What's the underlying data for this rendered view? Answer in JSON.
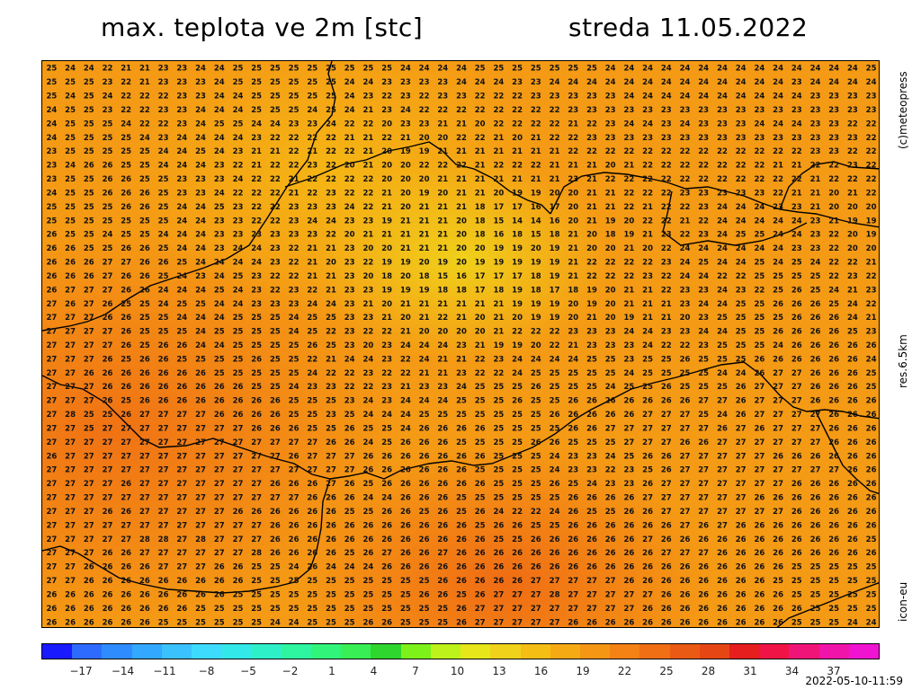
{
  "title": "max. teplota ve 2m [stc]",
  "date": "streda 11.05.2022",
  "credit": "(c)meteopress",
  "resolution": "res.6.5km",
  "model": "icon-eu",
  "timestamp": "2022-05-10-11:59",
  "colorbar": {
    "ticks": [
      "-17",
      "-14",
      "-11",
      "-8",
      "-5",
      "-2",
      "1",
      "4",
      "7",
      "10",
      "13",
      "16",
      "19",
      "22",
      "25",
      "28",
      "31",
      "34",
      "37"
    ],
    "colors": [
      "#1a1aff",
      "#2d6bff",
      "#2f8cff",
      "#33a8ff",
      "#3ac2ff",
      "#3ddcff",
      "#33e8e8",
      "#2ef0c8",
      "#2ef5a0",
      "#30f57a",
      "#38f055",
      "#2ed62e",
      "#7df21a",
      "#bdf21a",
      "#e6e61a",
      "#f0d21a",
      "#f5be14",
      "#f5aa14",
      "#f59614",
      "#f58214",
      "#f06e14",
      "#eb5a14",
      "#e64614",
      "#e61e1e",
      "#f01446",
      "#f01478",
      "#f014aa",
      "#f014d2"
    ]
  },
  "grid_rows": [
    "25 24 24 22 21 21 23 23 24 24 25 25 25 25 25 25 25 25 25 24 24 24 24 25 25 25 25 25 25 25 24 24 24 24 24 24 24 24 24 24 24 24 24 24 25",
    "25 25 25 23 22 21 23 23 23 24 25 25 25 25 25 25 24 24 23 23 23 23 24 24 24 23 23 24 24 24 24 24 24 24 24 24 24 24 24 24 23 24 24 24 24",
    "25 24 25 24 22 22 22 23 23 24 24 25 25 25 25 25 24 23 22 23 22 23 23 22 22 22 23 23 23 23 23 24 24 24 24 24 24 24 24 24 24 23 23 23 23",
    "24 25 25 23 22 22 23 23 24 24 24 25 25 25 24 25 24 21 23 24 22 22 22 22 22 22 22 22 23 23 23 23 23 23 23 23 23 23 23 23 23 23 23 23 23",
    "24 25 25 25 24 22 22 23 24 25 25 24 24 23 23 24 22 22 20 23 23 21 21 20 22 22 22 22 21 22 23 24 24 23 24 23 23 23 24 24 24 23 23 22 22",
    "24 25 25 25 25 24 23 24 24 24 24 23 22 22 22 22 21 21 22 21 20 20 22 22 21 20 21 22 22 23 23 23 23 23 23 23 23 23 23 23 23 23 23 23 22",
    "23 25 25 25 25 25 24 24 25 24 23 21 21 22 21 22 22 21 20 19 19 21 21 21 21 21 21 21 22 22 22 22 22 22 22 22 22 22 22 22 22 23 23 22 22",
    "23 24 26 26 25 25 24 24 24 23 22 21 22 22 23 22 20 21 20 20 22 22 22 21 22 22 22 21 21 21 20 21 22 22 22 22 22 22 22 21 21 22 22 23 22",
    "23 25 25 26 26 25 25 23 23 23 24 22 22 21 22 22 22 22 20 20 20 21 21 21 21 21 21 21 23 21 22 22 22 22 22 22 22 22 22 22 22 21 22 22 22",
    "24 25 25 26 26 26 25 23 23 24 22 22 22 21 22 23 22 22 21 20 19 20 21 21 20 19 19 20 20 21 21 22 22 22 23 23 23 23 23 22 21 21 20 21 22",
    "25 25 25 25 26 26 25 24 24 25 23 22 22 23 23 23 24 22 21 20 21 21 21 18 17 17 16 17 20 21 21 22 21 22 22 23 24 24 24 23 23 21 20 20 20",
    "25 25 25 25 25 25 25 24 24 23 23 22 22 23 24 24 23 23 19 21 21 21 20 18 15 14 14 16 20 21 19 20 22 22 21 22 24 24 24 24 24 23 21 19 19",
    "26 25 25 24 25 25 24 24 24 23 23 23 23 23 23 22 20 21 21 21 21 21 20 18 16 18 15 18 21 20 18 19 21 23 22 23 24 25 25 24 24 23 22 20 19",
    "26 26 25 25 26 26 25 24 24 23 24 24 23 22 21 21 23 20 20 21 21 21 20 20 19 19 20 19 21 20 20 21 20 22 24 24 24 24 24 24 23 23 22 20 20",
    "26 26 26 27 27 26 26 25 24 24 24 24 23 22 21 20 23 22 19 19 20 19 20 19 19 19 19 19 21 22 22 22 22 23 24 25 24 24 25 24 25 24 22 22 21",
    "26 26 26 27 26 26 25 24 23 24 25 23 22 22 21 21 23 20 18 20 18 15 16 17 17 17 18 19 21 22 22 22 23 22 24 24 22 22 25 25 25 25 22 23 22",
    "26 27 27 27 26 26 24 24 24 25 24 23 22 23 22 21 23 23 19 19 19 18 18 17 18 19 18 17 18 19 20 21 21 22 23 23 24 23 22 25 26 25 24 21 23",
    "27 26 27 26 25 25 24 25 25 24 24 23 23 23 24 24 23 21 20 21 21 21 21 21 21 19 19 19 20 19 20 21 21 21 23 24 24 25 25 26 26 26 25 24 22",
    "27 27 27 26 26 25 25 24 24 24 25 25 25 24 25 25 23 23 21 20 21 22 21 20 21 20 19 19 20 21 20 19 21 21 20 23 25 25 25 25 26 26 26 24 21",
    "27 27 27 27 26 25 25 25 24 25 25 25 25 24 25 22 23 22 22 21 20 20 20 20 21 22 22 22 23 23 23 24 24 23 23 24 24 25 25 26 26 26 26 25 23",
    "27 27 27 27 26 25 26 26 24 24 25 25 25 25 26 25 23 20 23 24 24 24 23 21 19 19 20 22 21 23 23 23 24 22 22 23 25 25 25 24 26 26 26 26 26",
    "27 27 27 26 25 26 26 25 25 25 25 26 25 25 22 21 24 24 23 22 24 21 21 22 23 24 24 24 24 25 25 23 25 25 26 25 25 25 26 26 26 26 26 26 24",
    "27 27 26 26 26 26 26 26 26 25 25 25 25 25 24 22 22 23 22 22 21 21 23 22 22 24 25 25 25 25 25 24 25 25 25 25 24 24 26 27 27 26 26 26 25",
    "27 27 27 26 26 26 26 26 26 26 26 25 25 24 23 23 22 22 23 21 23 23 24 25 25 25 26 25 25 25 24 25 25 26 25 25 25 26 27 27 27 26 26 26 25",
    "27 27 27 26 25 26 26 26 26 26 26 26 26 25 25 25 23 24 23 24 24 24 25 25 25 26 25 25 26 26 26 26 26 26 26 27 27 26 27 27 27 26 26 26 26",
    "27 28 25 25 26 27 27 27 27 26 26 26 26 25 25 23 25 24 24 24 25 25 25 25 25 25 25 26 26 26 26 26 27 27 27 25 24 26 27 27 27 27 26 26 26",
    "27 27 25 27 27 27 27 27 27 27 27 26 26 26 25 25 26 25 25 24 26 26 26 26 25 25 25 25 26 26 27 27 27 27 27 27 26 27 26 27 27 27 26 26 26",
    "27 27 27 27 27 27 27 27 27 27 27 27 27 27 27 26 26 24 25 26 26 26 25 25 25 25 26 26 25 25 25 27 27 27 26 26 27 27 27 27 27 27 26 26 26",
    "26 27 27 27 27 27 27 27 27 27 27 27 27 26 27 27 27 26 26 26 26 26 26 26 25 25 25 24 23 23 24 25 26 26 27 27 27 27 27 26 26 26 26 26 26",
    "27 27 27 27 27 27 27 27 27 27 27 27 27 27 27 27 27 26 26 26 26 26 26 25 25 25 25 24 23 23 22 23 25 26 27 27 27 27 27 27 27 27 27 26 26",
    "27 27 27 27 26 27 27 27 27 27 27 27 26 26 26 27 26 25 26 26 26 26 26 26 25 25 25 26 25 24 23 23 26 27 27 27 27 27 27 27 26 26 26 26 26",
    "27 27 27 27 27 27 27 27 27 27 27 27 27 27 26 26 26 24 24 26 26 26 25 25 25 25 25 25 26 26 26 26 27 27 27 27 27 27 26 26 26 26 26 26 26",
    "27 27 27 26 26 27 27 27 27 27 26 26 26 26 26 26 25 25 26 26 25 26 25 26 24 22 22 24 26 25 25 26 26 27 27 27 27 27 27 27 26 26 26 26 26",
    "27 27 27 27 27 27 27 27 27 27 27 27 26 26 26 26 26 26 26 26 26 26 26 25 26 26 25 25 26 26 26 26 26 26 27 26 27 26 26 26 26 26 26 26 26",
    "27 27 27 27 27 28 28 27 28 27 27 27 26 26 26 26 26 26 26 26 26 26 26 26 25 25 26 26 26 26 26 26 27 26 26 26 26 26 26 26 26 26 26 26 25",
    "27 27 27 26 26 27 27 27 27 27 27 28 26 26 26 26 25 26 27 26 26 27 26 26 26 26 26 26 26 26 26 26 26 27 27 27 26 26 26 26 26 26 26 26 26",
    "27 27 26 26 26 26 27 27 27 26 26 25 25 24 26 24 24 24 26 26 26 26 26 26 26 26 26 26 26 26 26 26 26 26 26 26 26 26 26 26 25 25 25 25 25",
    "27 27 26 26 26 26 26 26 26 26 26 25 25 25 25 25 25 25 25 25 25 26 26 26 26 26 27 27 27 27 27 26 26 26 26 26 26 26 26 25 25 25 25 25 25",
    "26 26 26 26 26 26 26 26 26 26 25 25 25 25 25 25 25 25 25 25 26 26 25 26 27 27 27 28 27 27 27 27 27 26 26 26 26 26 26 26 25 25 25 25 25",
    "26 26 26 26 26 26 26 26 25 25 25 25 25 25 25 25 25 25 25 25 25 25 26 27 27 27 27 27 27 27 27 27 26 26 26 26 26 26 26 26 26 25 25 25 25",
    "26 26 26 26 26 26 25 25 25 25 25 25 24 24 25 25 25 26 26 25 25 25 26 27 27 27 27 27 26 26 26 26 26 26 26 26 26 26 26 26 25 25 25 24 24"
  ]
}
